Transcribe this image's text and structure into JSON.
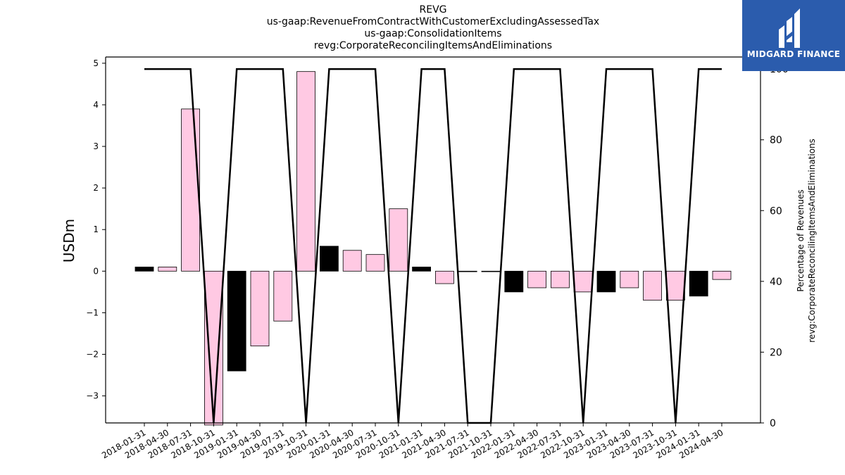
{
  "title_lines": [
    "REVG",
    "us-gaap:RevenueFromContractWithCustomerExcludingAssessedTax",
    "us-gaap:ConsolidationItems",
    "revg:CorporateReconcilingItemsAndEliminations"
  ],
  "logo": {
    "text": "MIDGARD FINANCE",
    "icon": "midgard-logo-icon",
    "background": "#2b5cad"
  },
  "colors": {
    "q1_bar": "#000000",
    "other_bar": "#ffc9e3",
    "line": "#000000"
  },
  "chart_data": {
    "type": "bar",
    "categories": [
      "2018-01-31",
      "2018-04-30",
      "2018-07-31",
      "2018-10-31",
      "2019-01-31",
      "2019-04-30",
      "2019-07-31",
      "2019-10-31",
      "2020-01-31",
      "2020-04-30",
      "2020-07-31",
      "2020-10-31",
      "2021-01-31",
      "2021-04-30",
      "2021-07-31",
      "2021-10-31",
      "2022-01-31",
      "2022-04-30",
      "2022-07-31",
      "2022-10-31",
      "2023-01-31",
      "2023-04-30",
      "2023-07-31",
      "2023-10-31",
      "2024-01-31",
      "2024-04-30"
    ],
    "series": [
      {
        "axis": "left",
        "type": "bar",
        "values": [
          0.1,
          0.1,
          3.9,
          -3.7,
          -2.4,
          -1.8,
          -1.2,
          4.8,
          0.6,
          0.5,
          0.4,
          1.5,
          0.1,
          -0.3,
          0.0,
          0.0,
          -0.5,
          -0.4,
          -0.4,
          -0.5,
          -0.5,
          -0.4,
          -0.7,
          -0.7,
          -0.6,
          -0.2
        ]
      },
      {
        "axis": "right",
        "type": "line",
        "values": [
          100,
          100,
          100,
          0,
          100,
          100,
          100,
          0,
          100,
          100,
          100,
          0,
          100,
          100,
          0,
          0,
          100,
          100,
          100,
          0,
          100,
          100,
          100,
          0,
          100,
          100
        ]
      }
    ],
    "ylabel": "USDm",
    "ylabel_right": [
      "Percentage of Revenues",
      "revg:CorporateReconcilingItemsAndEliminations"
    ],
    "ylim": [
      -3.65,
      5.15
    ],
    "ylim_right": [
      0,
      103.4
    ],
    "yticks": [
      -3,
      -2,
      -1,
      0,
      1,
      2,
      3,
      4,
      5
    ],
    "yticks_right": [
      0,
      20,
      40,
      60,
      80,
      100
    ],
    "grid": false,
    "legend": "none"
  }
}
